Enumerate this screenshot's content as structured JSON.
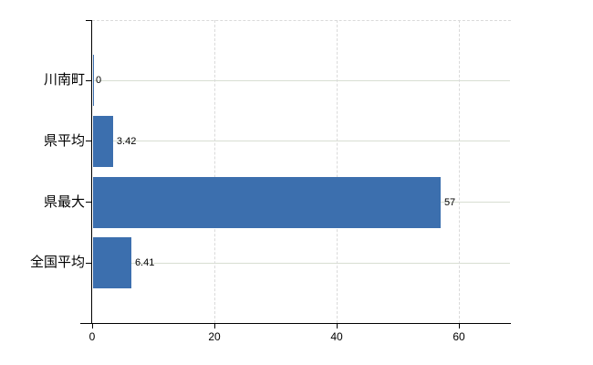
{
  "chart_data": {
    "type": "bar",
    "orientation": "horizontal",
    "title": "",
    "categories": [
      "川南町",
      "県平均",
      "県最大",
      "全国平均"
    ],
    "values": [
      0,
      3.42,
      57,
      6.41
    ],
    "value_labels": [
      "0",
      "3.42",
      "57",
      "6.41"
    ],
    "x_ticks": [
      0,
      20,
      40,
      60
    ],
    "x_tick_labels": [
      "0",
      "20",
      "40",
      "60"
    ],
    "xlim": [
      0,
      68.5
    ],
    "xlabel": "",
    "ylabel": "",
    "legend": null,
    "grid": {
      "horizontal_style": "solid",
      "vertical_style": "dashed",
      "top_border_style": "dashed"
    },
    "colors": {
      "bar": "#3c6fae",
      "horizontal_grid": "#d8ded2",
      "vertical_grid": "#dadada",
      "axis": "#000000",
      "text": "#000000",
      "background": "#ffffff"
    }
  }
}
